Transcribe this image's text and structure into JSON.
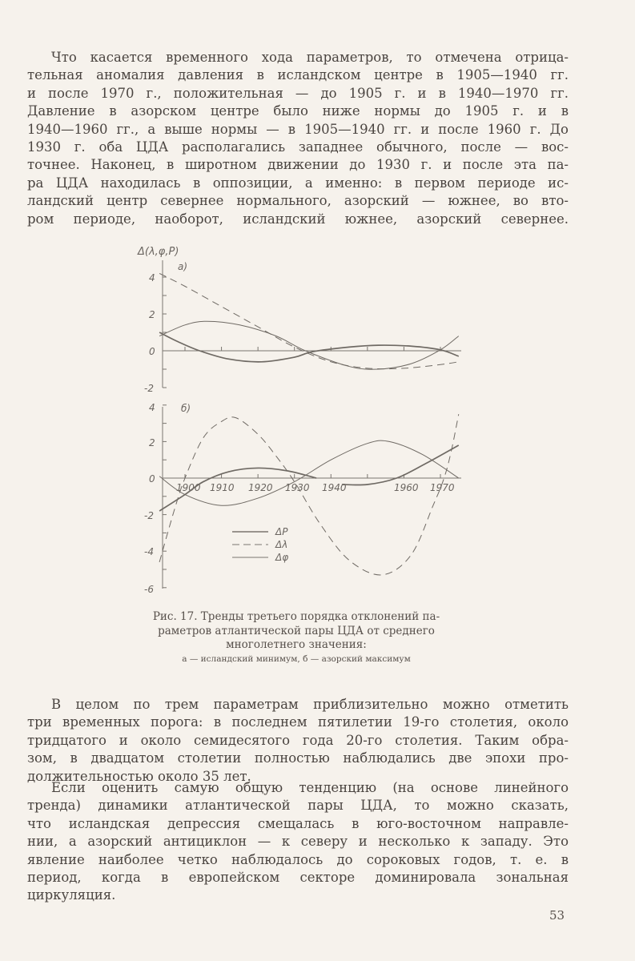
{
  "top_paragraph": [
    "Что касается временного хода параметров, то отмечена отрица-",
    "тельная аномалия давления в исландском центре в 1905—1940 гг.",
    "и после 1970 г., положительная — до 1905 г. и в 1940—1970 гг.",
    "Давление в азорском центре было ниже нормы до 1905 г. и в",
    "1940—1960 гг., а выше нормы — в 1905—1940 гг. и после 1960 г. До",
    "1930 г. оба ЦДА располагались западнее обычного, после — вос-",
    "точнее. Наконец, в широтном движении до 1930 г. и после эта па-",
    "ра ЦДА находилась в оппозиции, а именно: в первом периоде ис-",
    "ландский центр севернее нормального, азорский — южнее, во вто-",
    "ром периоде, наоборот, исландский южнее, азорский севернее."
  ],
  "chart_data": [
    {
      "type": "line",
      "panel_label": "а)",
      "ylabel": "Δ(λ,φ,P)",
      "ylim": [
        -2,
        4.5
      ],
      "yticks": [
        "4",
        "2",
        "0",
        "-2"
      ],
      "xlim": [
        1893,
        1975
      ],
      "series": [
        {
          "style": "dashed",
          "points": [
            [
              1893,
              4.2
            ],
            [
              1900,
              3.5
            ],
            [
              1910,
              2.4
            ],
            [
              1920,
              1.3
            ],
            [
              1930,
              0.2
            ],
            [
              1940,
              -0.6
            ],
            [
              1950,
              -0.95
            ],
            [
              1960,
              -0.95
            ],
            [
              1970,
              -0.75
            ],
            [
              1975,
              -0.6
            ]
          ]
        },
        {
          "style": "thin",
          "points": [
            [
              1893,
              0.8
            ],
            [
              1900,
              1.4
            ],
            [
              1906,
              1.6
            ],
            [
              1915,
              1.4
            ],
            [
              1925,
              0.8
            ],
            [
              1933,
              0
            ],
            [
              1945,
              -0.85
            ],
            [
              1953,
              -1.0
            ],
            [
              1962,
              -0.7
            ],
            [
              1970,
              0.05
            ],
            [
              1975,
              0.8
            ]
          ]
        },
        {
          "style": "thick",
          "points": [
            [
              1893,
              1.0
            ],
            [
              1898,
              0.5
            ],
            [
              1904,
              0
            ],
            [
              1912,
              -0.45
            ],
            [
              1921,
              -0.6
            ],
            [
              1930,
              -0.35
            ],
            [
              1935,
              -0.05
            ],
            [
              1945,
              0.2
            ],
            [
              1953,
              0.3
            ],
            [
              1962,
              0.25
            ],
            [
              1970,
              0.05
            ],
            [
              1975,
              -0.3
            ]
          ]
        }
      ]
    },
    {
      "type": "line",
      "panel_label": "б)",
      "ylim": [
        -6,
        4
      ],
      "yticks": [
        "4",
        "2",
        "0",
        "-2",
        "-4",
        "-6"
      ],
      "xlim": [
        1893,
        1975
      ],
      "xticks": [
        "1900",
        "1910",
        "1920",
        "1930",
        "1940",
        "1960",
        "1970"
      ],
      "legend": [
        "ΔP",
        "Δλ",
        "Δφ"
      ],
      "series": [
        {
          "name": "Δλ",
          "style": "dashed",
          "points": [
            [
              1893,
              -4.6
            ],
            [
              1897,
              -1.8
            ],
            [
              1900,
              0
            ],
            [
              1905,
              2.2
            ],
            [
              1910,
              3.1
            ],
            [
              1914,
              3.3
            ],
            [
              1920,
              2.4
            ],
            [
              1925,
              1.2
            ],
            [
              1930,
              -0.2
            ],
            [
              1937,
              -2.5
            ],
            [
              1945,
              -4.5
            ],
            [
              1954,
              -5.3
            ],
            [
              1962,
              -4.2
            ],
            [
              1968,
              -1.5
            ],
            [
              1971,
              0
            ],
            [
              1973,
              1.5
            ],
            [
              1975,
              3.5
            ]
          ]
        },
        {
          "name": "Δφ",
          "style": "thin",
          "points": [
            [
              1893,
              0.1
            ],
            [
              1900,
              -0.9
            ],
            [
              1910,
              -1.5
            ],
            [
              1920,
              -1.1
            ],
            [
              1930,
              -0.2
            ],
            [
              1940,
              1.0
            ],
            [
              1950,
              1.9
            ],
            [
              1956,
              2.0
            ],
            [
              1965,
              1.3
            ],
            [
              1975,
              0
            ]
          ]
        },
        {
          "name": "ΔP",
          "style": "thick",
          "points": [
            [
              1893,
              -1.8
            ],
            [
              1900,
              -0.9
            ],
            [
              1905,
              -0.2
            ],
            [
              1912,
              0.35
            ],
            [
              1920,
              0.55
            ],
            [
              1928,
              0.4
            ],
            [
              1936,
              0
            ]
          ]
        },
        {
          "name": "ΔP",
          "style": "thick",
          "points": [
            [
              1943,
              -0.35
            ],
            [
              1950,
              -0.35
            ],
            [
              1958,
              0
            ],
            [
              1966,
              0.8
            ],
            [
              1975,
              1.8
            ]
          ]
        }
      ]
    }
  ],
  "caption": {
    "line1": "Рис. 17. Тренды третьего порядка отклонений па-",
    "line2": "раметров атлантической пары ЦДА от среднего",
    "line3": "многолетнего значения:",
    "line4": "а — исландский минимум, б — азорский максимум"
  },
  "paragraph2": [
    "В целом по трем параметрам приблизительно можно отметить",
    "три временных порога: в последнем пятилетии 19-го столетия, около",
    "тридцатого и около семидесятого года 20-го столетия. Таким обра-",
    "зом, в двадцатом столетии полностью наблюдались две эпохи про-",
    "должительностью около 35 лет."
  ],
  "paragraph3": [
    "Если оценить самую общую тенденцию (на основе линейного",
    "тренда) динамики атлантической пары ЦДА, то можно сказать,",
    "что исландская депрессия смещалась в юго-восточном направле-",
    "нии, а азорский антициклон — к северу и несколько к западу. Это",
    "явление наиболее четко наблюдалось до сороковых годов, т. е. в",
    "период, когда в европейском секторе доминировала зональная",
    "циркуляция."
  ],
  "page_number": "53"
}
